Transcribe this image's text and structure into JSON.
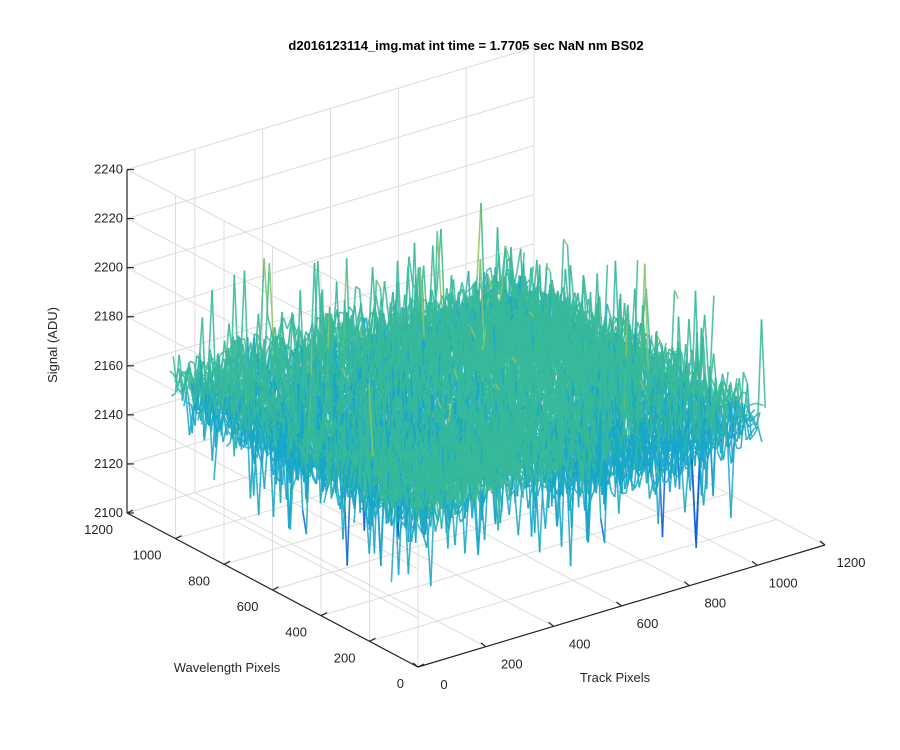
{
  "chart_data": {
    "type": "surface",
    "title": "d2016123114_img.mat int time = 1.7705 sec  NaN nm BS02",
    "x_axis": {
      "label": "Track Pixels",
      "range": [
        0,
        1200
      ],
      "ticks": [
        "0",
        "200",
        "400",
        "600",
        "800",
        "1000",
        "1200"
      ]
    },
    "y_axis": {
      "label": "Wavelength Pixels",
      "range": [
        0,
        1200
      ],
      "ticks": [
        "0",
        "200",
        "400",
        "600",
        "800",
        "1000",
        "1200"
      ]
    },
    "z_axis": {
      "label": "Signal (ADU)",
      "range": [
        2100,
        2240
      ],
      "ticks": [
        "2100",
        "2120",
        "2140",
        "2160",
        "2180",
        "2200",
        "2220",
        "2240"
      ]
    },
    "surface": {
      "x_extent": [
        0,
        1024
      ],
      "y_extent": [
        0,
        1024
      ],
      "approx_mean": 2160,
      "approx_min": 2110,
      "approx_max": 2235
    },
    "grid": true,
    "colormap": "parula",
    "colors": {
      "low": "#0b5fd6",
      "mid_low": "#19a7c8",
      "mid": "#37b89a",
      "mid_high": "#8dc461",
      "high": "#d9c14a"
    }
  }
}
